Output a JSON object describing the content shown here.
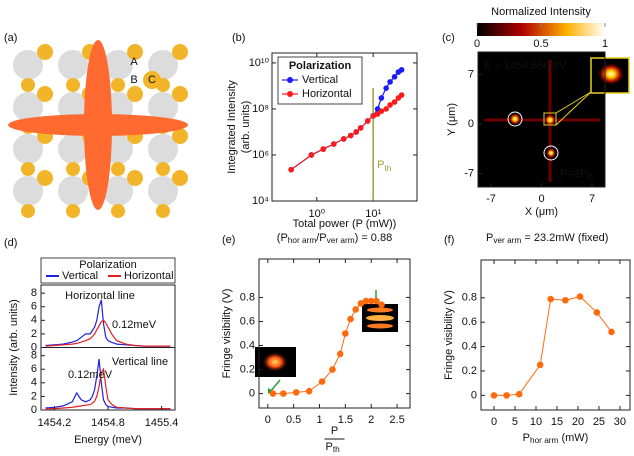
{
  "illustration": {
    "panel_label": "(a)",
    "labels": [
      "A",
      "B",
      "C"
    ]
  },
  "chart_data": [
    {
      "type": "scatter-line",
      "panel_label": "(b)",
      "xlog": true,
      "ylog": true,
      "xlim": [
        0.16,
        60
      ],
      "ylim": [
        10000,
        27000000000
      ],
      "xticks": [
        {
          "value": 1,
          "label": "10⁰"
        },
        {
          "value": 10,
          "label": "10¹"
        }
      ],
      "yticks": [
        {
          "value": 10000,
          "label": "10⁴"
        },
        {
          "value": 1000000,
          "label": "10⁶"
        },
        {
          "value": 100000000,
          "label": "10⁸"
        },
        {
          "value": 10000000000,
          "label": "10¹⁰"
        }
      ],
      "xlabel": "Total power (P (mW))",
      "ylabel": [
        "Integrated Intensity",
        "(arb. units)"
      ],
      "legend_title": "Polarization",
      "x": [
        0.35,
        0.8,
        1.3,
        2,
        3,
        4,
        5,
        6,
        8,
        10,
        12,
        14,
        17,
        20,
        24,
        28,
        32
      ],
      "series": [
        {
          "name": "Vertical",
          "color": "#1a1aff",
          "values": [
            230000,
            1000000,
            1800000,
            3000000,
            5000000,
            7000000,
            10000000,
            15000000,
            30000000,
            50000000,
            100000000,
            300000000,
            800000000,
            1500000000,
            2500000000,
            4000000000,
            5000000000
          ]
        },
        {
          "name": "Horizontal",
          "color": "#ff1a1a",
          "values": [
            230000,
            1000000,
            1800000,
            3000000,
            5000000,
            7000000,
            10000000,
            15000000,
            30000000,
            50000000,
            60000000,
            80000000,
            100000000,
            150000000,
            200000000,
            300000000,
            400000000
          ]
        }
      ],
      "threshold": {
        "x": 10,
        "label": "P",
        "sub": "th",
        "color": "#9aa23a"
      }
    },
    {
      "type": "heatmap",
      "panel_label": "(c)",
      "colorbar_title": "Normalized Intensity",
      "clim": [
        0,
        1
      ],
      "cticks": [
        0,
        0.5,
        1
      ],
      "xlim": [
        -8.8,
        8.8
      ],
      "ylim": [
        -8.9,
        10.2
      ],
      "xticks": [
        -7,
        0,
        7
      ],
      "yticks": [
        -7,
        0,
        7
      ],
      "xlabel": "X (μm)",
      "ylabel": "Y (μm)",
      "energy_label": "E = 1454.65meV",
      "power_label": [
        {
          "text": "P=2P"
        },
        {
          "text": "th",
          "sub": true
        }
      ]
    },
    {
      "type": "line",
      "panel_label": "(d)",
      "legend_title": "Polarization",
      "xlim": [
        1454.05,
        1455.55
      ],
      "xticks": [
        1454.2,
        1454.8,
        1455.4
      ],
      "xlabel": "Energy (meV)",
      "ylabel": "Intensity (arb. units)",
      "x": [
        1454.1,
        1454.2,
        1454.3,
        1454.4,
        1454.45,
        1454.5,
        1454.55,
        1454.6,
        1454.625,
        1454.65,
        1454.675,
        1454.7,
        1454.725,
        1454.75,
        1454.775,
        1454.8,
        1454.85,
        1454.9,
        1455.0,
        1455.1,
        1455.2,
        1455.3,
        1455.4,
        1455.5
      ],
      "subplots": [
        {
          "label": "Horizontal line",
          "ylim": [
            0,
            9.2
          ],
          "yticks": [
            0,
            2,
            4,
            6,
            8
          ],
          "annotation": "0.12meV",
          "series": [
            {
              "name": "Vertical",
              "color": "#2020e0",
              "values": [
                0.3,
                0.4,
                0.5,
                0.8,
                1.0,
                1.5,
                2.0,
                2.0,
                2.5,
                3.0,
                4.0,
                6.0,
                7.0,
                3.5,
                1.5,
                1.0,
                0.7,
                0.5,
                0.4,
                0.3,
                0.2,
                0.2,
                0.2,
                0.2
              ]
            },
            {
              "name": "Horizontal",
              "color": "#e02020",
              "values": [
                0.2,
                0.3,
                0.4,
                0.5,
                0.6,
                0.8,
                1.0,
                1.3,
                1.6,
                2.0,
                2.6,
                3.2,
                3.8,
                4.0,
                3.6,
                3.0,
                1.8,
                1.0,
                0.5,
                0.3,
                0.2,
                0.2,
                0.2,
                0.2
              ]
            }
          ]
        },
        {
          "label": "Vertical line",
          "ylim": [
            0,
            9.2
          ],
          "yticks": [
            0,
            2,
            4,
            6,
            8
          ],
          "annotation": "0.12meV",
          "series": [
            {
              "name": "Vertical",
              "color": "#2020e0",
              "values": [
                0.3,
                0.4,
                0.6,
                1.2,
                2.5,
                1.5,
                1.2,
                1.5,
                2.0,
                3.0,
                5.0,
                7.5,
                4.0,
                1.5,
                0.8,
                0.5,
                0.4,
                0.3,
                0.3,
                0.2,
                0.2,
                0.2,
                0.2,
                0.2
              ]
            },
            {
              "name": "Horizontal",
              "color": "#e02020",
              "values": [
                0.2,
                0.2,
                0.3,
                0.4,
                0.5,
                0.6,
                0.7,
                0.8,
                1.0,
                1.3,
                2.0,
                3.5,
                5.5,
                6.0,
                3.5,
                1.5,
                0.7,
                0.4,
                0.3,
                0.2,
                0.2,
                0.2,
                0.2,
                0.2
              ]
            }
          ]
        }
      ]
    },
    {
      "type": "dotted-line",
      "panel_label": "(e)",
      "title": [
        {
          "text": "(P"
        },
        {
          "text": "hor arm",
          "sub": true
        },
        {
          "text": "/P"
        },
        {
          "text": "ver arm",
          "sub": true
        },
        {
          "text": ") = 0.88"
        }
      ],
      "xlim": [
        -0.17,
        2.75
      ],
      "ylim": [
        -0.12,
        1.12
      ],
      "xticks": [
        0,
        0.5,
        1,
        1.5,
        2,
        2.5
      ],
      "yticks": [
        0,
        0.2,
        0.4,
        0.6,
        0.8
      ],
      "xlabel_numerator": "P",
      "xlabel_denominator": [
        {
          "text": "P"
        },
        {
          "text": "th",
          "sub": true
        }
      ],
      "ylabel": "Fringe visibility (V)",
      "color": "#ff6a0e",
      "x": [
        0.1,
        0.3,
        0.55,
        0.8,
        1.05,
        1.25,
        1.4,
        1.5,
        1.6,
        1.7,
        1.8,
        1.9,
        2.0,
        2.1,
        2.2
      ],
      "values": [
        0,
        0,
        0.01,
        0.02,
        0.1,
        0.2,
        0.33,
        0.5,
        0.62,
        0.7,
        0.75,
        0.77,
        0.77,
        0.77,
        0.74
      ]
    },
    {
      "type": "dotted-line",
      "panel_label": "(f)",
      "title": [
        {
          "text": "P"
        },
        {
          "text": "ver arm",
          "sub": true
        },
        {
          "text": " = 23.2mW (fixed)"
        }
      ],
      "xlim": [
        -3.1,
        32.4
      ],
      "ylim": [
        -0.12,
        1.11
      ],
      "xticks": [
        0,
        5,
        10,
        15,
        20,
        25,
        30
      ],
      "yticks": [
        0,
        0.2,
        0.4,
        0.6,
        0.8
      ],
      "xlabel": [
        {
          "text": "P"
        },
        {
          "text": "hor arm",
          "sub": true
        },
        {
          "text": " (mW)"
        }
      ],
      "ylabel": "Fringe visibility (V)",
      "color": "#ff6a0e",
      "x": [
        0,
        3,
        6,
        11,
        13.5,
        17,
        20.5,
        24.5,
        28
      ],
      "values": [
        0,
        0,
        0.01,
        0.25,
        0.79,
        0.78,
        0.81,
        0.68,
        0.52
      ]
    }
  ]
}
